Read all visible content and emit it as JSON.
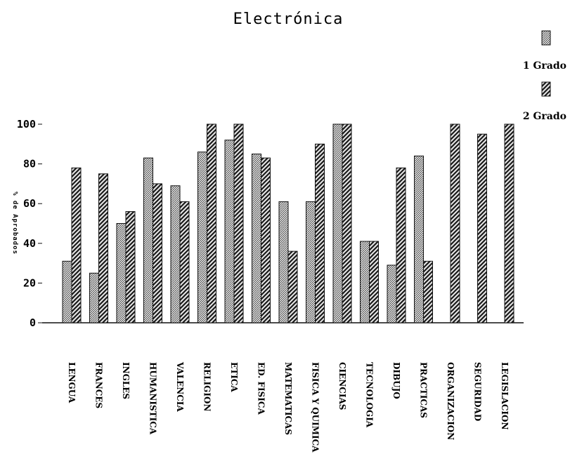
{
  "chart_data": {
    "type": "bar",
    "title": "Electrónica",
    "ylabel": "% de Aprobados",
    "xlabel": "",
    "ylim": [
      0,
      100
    ],
    "yticks": [
      "0",
      "20",
      "40",
      "60",
      "80",
      "100"
    ],
    "grid": false,
    "legend_position": "top-right",
    "categories": [
      "LENGUA",
      "FRANCES",
      "INGLES",
      "HUMANISTICA",
      "VALENCIA",
      "RELIGION",
      "ETICA",
      "ED. FISICA",
      "MATEMATICAS",
      "FISICA Y QUIMICA",
      "CIENCIAS",
      "TECNOLOGIA",
      "DIBUJO",
      "PRACTICAS",
      "ORGANIZACION",
      "SEGURIDAD",
      "LEGISLACION"
    ],
    "series": [
      {
        "name": "1 Grado",
        "pattern": "dotted",
        "values": [
          31,
          25,
          50,
          83,
          69,
          86,
          92,
          85,
          61,
          61,
          100,
          41,
          29,
          84,
          0,
          0,
          0
        ]
      },
      {
        "name": "2 Grado",
        "pattern": "hatched",
        "values": [
          78,
          75,
          56,
          70,
          61,
          100,
          100,
          83,
          36,
          90,
          100,
          41,
          78,
          31,
          100,
          95,
          100
        ]
      }
    ]
  }
}
